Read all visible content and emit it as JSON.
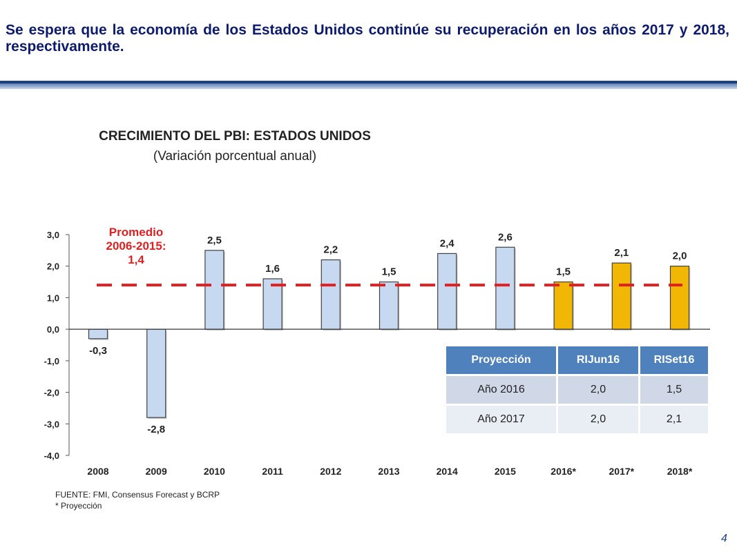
{
  "slide": {
    "title": "Se espera que la economía de los Estados Unidos continúe su recuperación en los años 2017 y 2018, respectivamente.",
    "page_number": "4",
    "accent_color": "#1d3f7e"
  },
  "chart_data": {
    "type": "bar",
    "title": "CRECIMIENTO DEL PBI: ESTADOS UNIDOS",
    "subtitle": "(Variación porcentual anual)",
    "categories": [
      "2008",
      "2009",
      "2010",
      "2011",
      "2012",
      "2013",
      "2014",
      "2015",
      "2016*",
      "2017*",
      "2018*"
    ],
    "values": [
      -0.3,
      -2.8,
      2.5,
      1.6,
      2.2,
      1.5,
      2.4,
      2.6,
      1.5,
      2.1,
      2.0
    ],
    "data_labels": [
      "-0,3",
      "-2,8",
      "2,5",
      "1,6",
      "2,2",
      "1,5",
      "2,4",
      "2,6",
      "1,5",
      "2,1",
      "2,0"
    ],
    "projected": [
      false,
      false,
      false,
      false,
      false,
      false,
      false,
      false,
      true,
      true,
      true
    ],
    "colors": {
      "actual": "#c6d9f1",
      "projected": "#f2b705",
      "outline": "#404040",
      "average": "#e02020"
    },
    "yticks": [
      3,
      2,
      1,
      0,
      -1,
      -2,
      -3,
      -4
    ],
    "ytick_labels": [
      "3,0",
      "2,0",
      "1,0",
      "0,0",
      "-1,0",
      "-2,0",
      "-3,0",
      "-4,0"
    ],
    "ylim": [
      -4,
      3
    ],
    "average": {
      "value": 1.4,
      "label_lines": [
        "Promedio",
        "2006-2015:",
        "1,4"
      ]
    },
    "xlabel": "",
    "ylabel": ""
  },
  "table": {
    "headers": [
      "Proyección",
      "RIJun16",
      "RISet16"
    ],
    "rows": [
      [
        "Año 2016",
        "2,0",
        "1,5"
      ],
      [
        "Año 2017",
        "2,0",
        "2,1"
      ]
    ]
  },
  "footnotes": {
    "source": "FUENTE: FMI, Consensus Forecast y BCRP",
    "projection": "* Proyección"
  }
}
